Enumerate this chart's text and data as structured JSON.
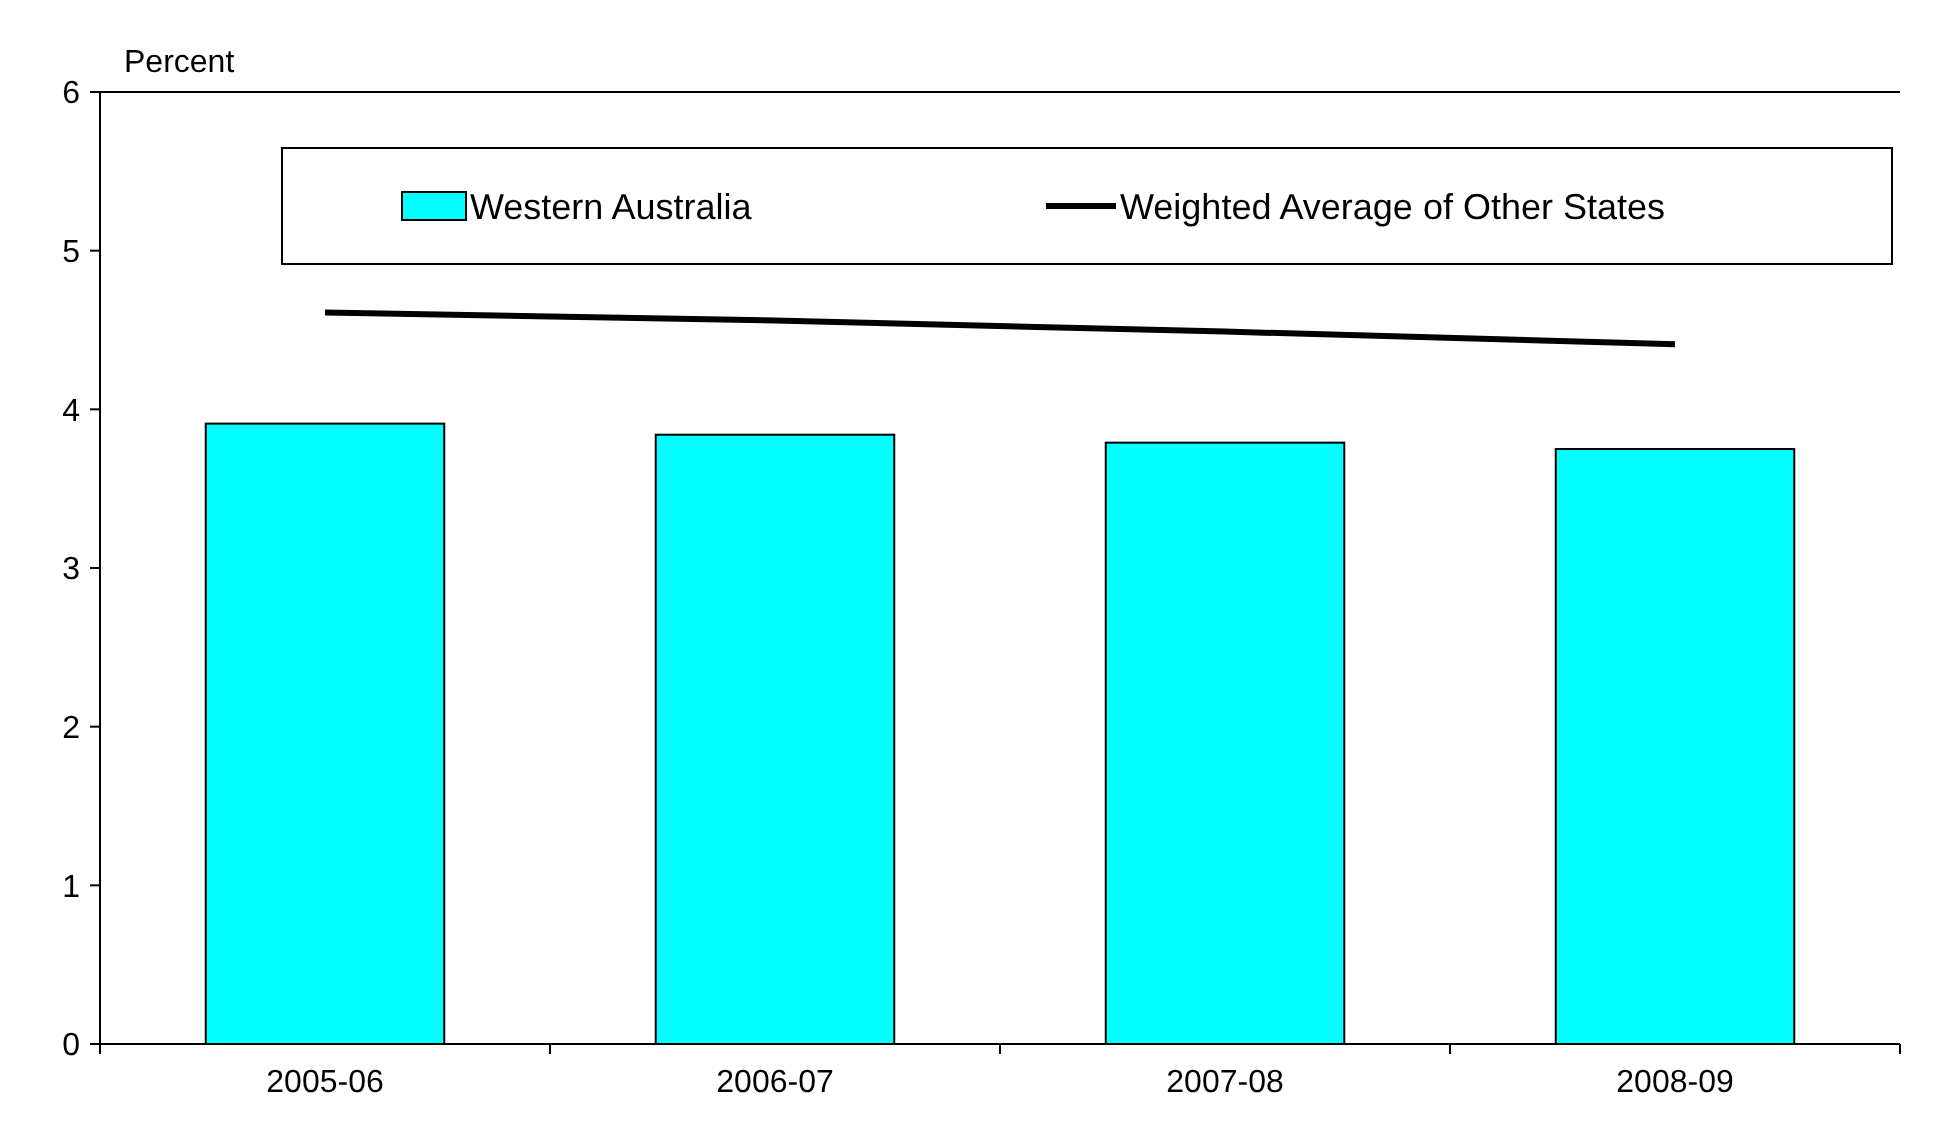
{
  "chart_data": {
    "type": "bar",
    "ylabel": "Percent",
    "categories": [
      "2005-06",
      "2006-07",
      "2007-08",
      "2008-09"
    ],
    "series": [
      {
        "name": "Western Australia",
        "color": "#00ffff",
        "values": [
          3.91,
          3.84,
          3.79,
          3.75
        ]
      },
      {
        "name": "Weighted Average of Other States",
        "type": "line",
        "color": "#000000",
        "values": [
          4.61,
          4.56,
          4.49,
          4.41
        ]
      }
    ],
    "ylim": [
      0,
      6
    ],
    "yticks": [
      0,
      1,
      2,
      3,
      4,
      5,
      6
    ],
    "grid": false,
    "legend": "top",
    "marker": "none",
    "line_style": "solid"
  }
}
